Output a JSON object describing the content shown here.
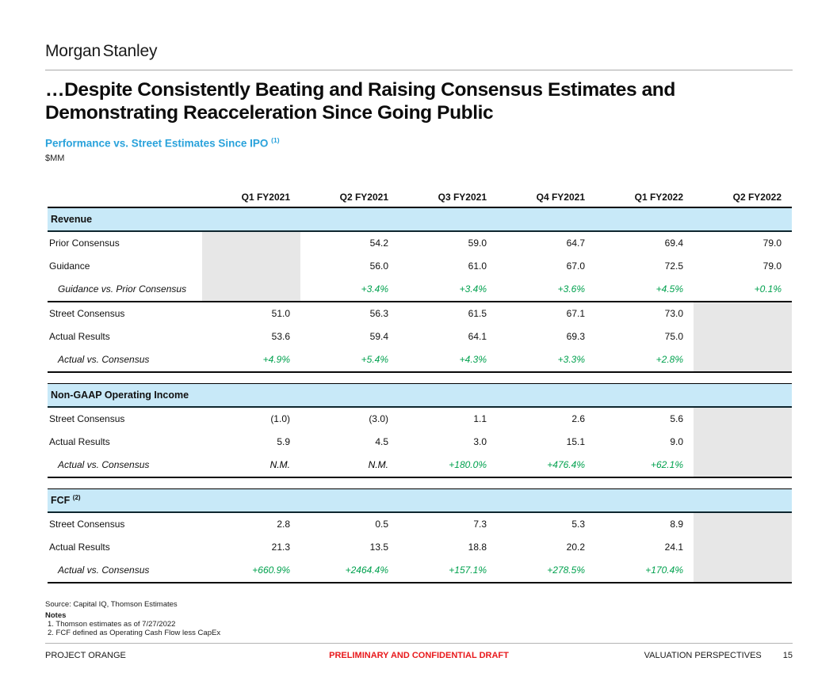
{
  "page": {
    "logo": "Morgan Stanley",
    "title_lines": [
      "…Despite Consistently Beating and Raising Consensus Estimates and",
      "Demonstrating Reacceleration Since Going Public"
    ],
    "subtitle": "Performance vs. Street Estimates Since IPO",
    "subtitle_superscript": "(1)",
    "units": "$MM"
  },
  "table": {
    "columns": [
      "Q1 FY2021",
      "Q2 FY2021",
      "Q3 FY2021",
      "Q4 FY2021",
      "Q1 FY2022",
      "Q2 FY2022"
    ],
    "sections": [
      {
        "title": "Revenue",
        "superscript": "",
        "rows": [
          {
            "label": "Prior Consensus",
            "style": "normal",
            "rule_top": false,
            "gray": [
              0
            ],
            "values": [
              "",
              "54.2",
              "59.0",
              "64.7",
              "69.4",
              "79.0"
            ]
          },
          {
            "label": "Guidance",
            "style": "normal",
            "rule_top": false,
            "gray": [
              0
            ],
            "values": [
              "",
              "56.0",
              "61.0",
              "67.0",
              "72.5",
              "79.0"
            ]
          },
          {
            "label": "Guidance vs. Prior Consensus",
            "style": "delta",
            "rule_top": false,
            "gray": [
              0
            ],
            "values": [
              "",
              "+3.4%",
              "+3.4%",
              "+3.6%",
              "+4.5%",
              "+0.1%"
            ]
          },
          {
            "label": "Street Consensus",
            "style": "normal",
            "rule_top": true,
            "gray": [
              5
            ],
            "values": [
              "51.0",
              "56.3",
              "61.5",
              "67.1",
              "73.0",
              ""
            ]
          },
          {
            "label": "Actual Results",
            "style": "normal",
            "rule_top": false,
            "gray": [
              5
            ],
            "values": [
              "53.6",
              "59.4",
              "64.1",
              "69.3",
              "75.0",
              ""
            ]
          },
          {
            "label": "Actual vs. Consensus",
            "style": "delta",
            "rule_top": false,
            "gray": [
              5
            ],
            "values": [
              "+4.9%",
              "+5.4%",
              "+4.3%",
              "+3.3%",
              "+2.8%",
              ""
            ]
          }
        ]
      },
      {
        "title": "Non-GAAP Operating Income",
        "superscript": "",
        "rows": [
          {
            "label": "Street Consensus",
            "style": "normal",
            "rule_top": false,
            "gray": [
              5
            ],
            "values": [
              "(1.0)",
              "(3.0)",
              "1.1",
              "2.6",
              "5.6",
              ""
            ]
          },
          {
            "label": "Actual Results",
            "style": "normal",
            "rule_top": false,
            "gray": [
              5
            ],
            "values": [
              "5.9",
              "4.5",
              "3.0",
              "15.1",
              "9.0",
              ""
            ]
          },
          {
            "label": "Actual vs. Consensus",
            "style": "delta",
            "rule_top": false,
            "gray": [
              5
            ],
            "values": [
              "N.M.",
              "N.M.",
              "+180.0%",
              "+476.4%",
              "+62.1%",
              ""
            ]
          }
        ]
      },
      {
        "title": "FCF",
        "superscript": "(2)",
        "rows": [
          {
            "label": "Street Consensus",
            "style": "normal",
            "rule_top": false,
            "gray": [
              5
            ],
            "values": [
              "2.8",
              "0.5",
              "7.3",
              "5.3",
              "8.9",
              ""
            ]
          },
          {
            "label": "Actual Results",
            "style": "normal",
            "rule_top": false,
            "gray": [
              5
            ],
            "values": [
              "21.3",
              "13.5",
              "18.8",
              "20.2",
              "24.1",
              ""
            ]
          },
          {
            "label": "Actual vs. Consensus",
            "style": "delta",
            "rule_top": false,
            "gray": [
              5
            ],
            "values": [
              "+660.9%",
              "+2464.4%",
              "+157.1%",
              "+278.5%",
              "+170.4%",
              ""
            ]
          }
        ]
      }
    ]
  },
  "footnotes": {
    "source": "Source: Capital IQ, Thomson Estimates",
    "notes_title": "Notes",
    "notes": [
      "1.   Thomson estimates as of 7/27/2022",
      "2.   FCF defined as Operating Cash Flow less CapEx"
    ]
  },
  "footer": {
    "left": "PROJECT ORANGE",
    "center": "PRELIMINARY AND CONFIDENTIAL DRAFT",
    "right": "VALUATION PERSPECTIVES",
    "page_number": "15"
  },
  "colors": {
    "accent_blue": "#29A2DB",
    "band_blue": "#C8E9F8",
    "positive_green": "#00A14E",
    "draft_red": "#E8191C",
    "shaded_gray": "#E7E7E7"
  }
}
